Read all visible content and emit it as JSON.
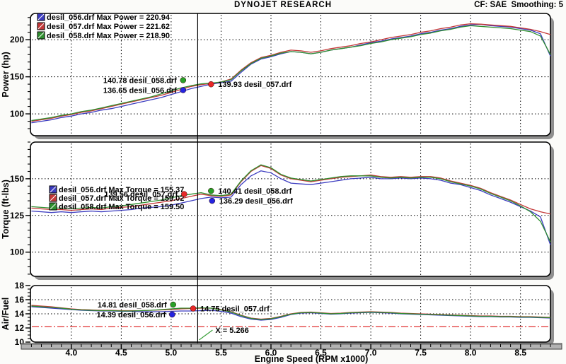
{
  "header": {
    "title": "DYNOJET RESEARCH",
    "settings": "CF: SAE  Smoothing: 5"
  },
  "colors": {
    "blue": "#3c3cc0",
    "red": "#c43838",
    "green": "#2f8f2f",
    "dot_blue": "#2424e0",
    "dot_red": "#e82828",
    "dot_green": "#28a028",
    "reference_line": "#e03030",
    "pointer_line": "#3aa03a",
    "grid": "#000000",
    "frame": "#000000",
    "axis_bar": "#b2b2b2"
  },
  "files": [
    "desil_056.drf",
    "desil_057.drf",
    "desil_058.drf"
  ],
  "cursor": {
    "x": 5.266,
    "label": "X = 5.266"
  },
  "xaxis": {
    "title": "Engine Speed (RPM x1000)",
    "min": 3.59,
    "max": 8.8,
    "major_ticks": [
      4.0,
      4.5,
      5.0,
      5.5,
      6.0,
      6.5,
      7.0,
      7.5,
      8.0,
      8.5
    ],
    "tick_labels": [
      "4.0",
      "4.5",
      "5.0",
      "5.5",
      "6.0",
      "6.5",
      "7.0",
      "7.5",
      "8.0",
      "8.5"
    ],
    "minor_step": 0.1
  },
  "chart_data": [
    {
      "type": "line",
      "panel": "power",
      "ylabel": "Power (hp)",
      "ylim": [
        70.5,
        235.5
      ],
      "yticks": [
        100,
        150,
        200
      ],
      "gridlines": [
        100,
        150,
        200
      ],
      "minor_step": 10,
      "legend_position": "top-left",
      "grid": true,
      "x": [
        3.6,
        3.7,
        3.8,
        3.9,
        4.0,
        4.1,
        4.2,
        4.3,
        4.4,
        4.5,
        4.6,
        4.7,
        4.8,
        4.9,
        5.0,
        5.1,
        5.2,
        5.3,
        5.4,
        5.5,
        5.6,
        5.7,
        5.8,
        5.9,
        6.0,
        6.1,
        6.2,
        6.3,
        6.4,
        6.5,
        6.6,
        6.7,
        6.8,
        6.9,
        7.0,
        7.1,
        7.2,
        7.3,
        7.4,
        7.5,
        7.6,
        7.7,
        7.8,
        7.9,
        8.0,
        8.1,
        8.2,
        8.3,
        8.4,
        8.5,
        8.6,
        8.7,
        8.8
      ],
      "series": [
        {
          "name": "desil_056.drf",
          "color": "blue",
          "max_value": 220.94,
          "max_label": "desil_056.drf Max Power = 220.94",
          "values": [
            88,
            90,
            92,
            95,
            97,
            100,
            102,
            105,
            107,
            110,
            113,
            116,
            119,
            122,
            126,
            130,
            134,
            137,
            140,
            142,
            144,
            156,
            167,
            174,
            177,
            181,
            184,
            183,
            181,
            183,
            186,
            188,
            190,
            193,
            196,
            198,
            201,
            203,
            205,
            208,
            210,
            213,
            215,
            218,
            220,
            220.9,
            219,
            218,
            217,
            215,
            213,
            208,
            178
          ]
        },
        {
          "name": "desil_057.drf",
          "color": "red",
          "max_value": 221.62,
          "max_label": "desil_057.drf Max Power = 221.62",
          "values": [
            90,
            92,
            94,
            97,
            99,
            102,
            104,
            107,
            110,
            113,
            116,
            119,
            122,
            125,
            129,
            133,
            137,
            139.5,
            141,
            143,
            147,
            159,
            169,
            176,
            179,
            183,
            186,
            185,
            183,
            185,
            188,
            190,
            192,
            195,
            197,
            200,
            203,
            205,
            207,
            210,
            212,
            215,
            217,
            220,
            221.6,
            221,
            220,
            219,
            218,
            216,
            214,
            211,
            207
          ]
        },
        {
          "name": "desil_058.drf",
          "color": "green",
          "max_value": 218.9,
          "max_label": "desil_058.drf Max Power = 218.90",
          "values": [
            91,
            93,
            95,
            98,
            100,
            103,
            105,
            108,
            111,
            114,
            117,
            120,
            123,
            127,
            131,
            135,
            138,
            140.5,
            141.5,
            143,
            146,
            158,
            168,
            175,
            178,
            182,
            184,
            183,
            181,
            183,
            186,
            188,
            190,
            192,
            195,
            197,
            200,
            202,
            204,
            207,
            209,
            212,
            214,
            217,
            218.9,
            218,
            217,
            216,
            215,
            213,
            211,
            205,
            180
          ]
        }
      ],
      "readouts": [
        {
          "file": "desil_058.drf",
          "color": "green",
          "value": 140.78,
          "label": "140.78 desil_058.drf",
          "dot_rpm": 5.12,
          "side": "left"
        },
        {
          "file": "desil_056.drf",
          "color": "blue",
          "value": 136.65,
          "label": "136.65 desil_056.drf",
          "dot_rpm": 5.12,
          "side": "left"
        },
        {
          "file": "desil_057.drf",
          "color": "red",
          "value": 139.93,
          "label": "139.93 desil_057.drf",
          "dot_rpm": 5.4,
          "side": "right"
        }
      ]
    },
    {
      "type": "line",
      "panel": "torque",
      "ylabel": "Torque (ft-lbs)",
      "ylim": [
        83.5,
        175
      ],
      "yticks": [
        100,
        125,
        150
      ],
      "gridlines": [
        100,
        125,
        150
      ],
      "minor_step": 5,
      "legend_position": "mid-left",
      "grid": true,
      "x": [
        3.6,
        3.7,
        3.8,
        3.9,
        4.0,
        4.1,
        4.2,
        4.3,
        4.4,
        4.5,
        4.6,
        4.7,
        4.8,
        4.9,
        5.0,
        5.1,
        5.2,
        5.3,
        5.4,
        5.5,
        5.6,
        5.7,
        5.8,
        5.9,
        6.0,
        6.1,
        6.2,
        6.3,
        6.4,
        6.5,
        6.6,
        6.7,
        6.8,
        6.9,
        7.0,
        7.1,
        7.2,
        7.3,
        7.4,
        7.5,
        7.6,
        7.7,
        7.8,
        7.9,
        8.0,
        8.1,
        8.2,
        8.3,
        8.4,
        8.5,
        8.6,
        8.7,
        8.8
      ],
      "series": [
        {
          "name": "desil_056.drf",
          "color": "blue",
          "max_value": 155.37,
          "max_label": "desil_056.drf Max Torque = 155.37",
          "values": [
            128,
            127.5,
            127,
            127.5,
            127,
            127.5,
            128,
            127.5,
            128,
            128.5,
            129,
            130,
            130.5,
            131,
            132,
            133.5,
            135,
            136.5,
            137.5,
            137,
            137.5,
            146,
            152,
            155.4,
            154,
            150,
            147,
            146.5,
            146,
            147,
            148,
            149,
            150,
            150.5,
            151,
            150,
            150,
            150.5,
            150,
            150.5,
            150,
            149,
            147,
            146,
            144,
            142,
            139,
            136.5,
            134,
            131,
            128,
            124,
            105
          ]
        },
        {
          "name": "desil_057.drf",
          "color": "red",
          "max_value": 159.02,
          "max_label": "desil_057.drf Max Torque = 159.02",
          "values": [
            130,
            129.5,
            129,
            129,
            128.5,
            129,
            129.5,
            129,
            130,
            130.5,
            131,
            132,
            133,
            134,
            135,
            136.5,
            138,
            139.5,
            138.5,
            138,
            139,
            148,
            155,
            159,
            157,
            152.5,
            150,
            149,
            148,
            149,
            150,
            151,
            151.5,
            152,
            152.5,
            151.5,
            151,
            151.5,
            151,
            151.5,
            151.5,
            150.5,
            148.5,
            147,
            145.5,
            143.5,
            140.5,
            138,
            135.5,
            132.5,
            129.5,
            127.5,
            126
          ]
        },
        {
          "name": "desil_058.drf",
          "color": "green",
          "max_value": 159.5,
          "max_label": "desil_058.drf Max Torque = 159.50",
          "values": [
            131,
            130.5,
            130,
            130,
            129.5,
            130,
            130.5,
            130,
            131,
            131.5,
            132.5,
            133.5,
            134.5,
            135.5,
            137,
            138.5,
            139.5,
            140.5,
            139,
            138.5,
            139.5,
            148.5,
            155.5,
            159.5,
            157.5,
            153,
            150.5,
            149.5,
            148.5,
            149.5,
            150.5,
            151.5,
            152,
            152,
            152,
            151,
            150.5,
            151,
            150.5,
            151,
            151,
            150,
            148,
            146.5,
            145,
            143,
            140,
            137.5,
            135,
            131.5,
            127.5,
            121,
            107
          ]
        }
      ],
      "readouts": [
        {
          "file": "desil_057.drf",
          "color": "red",
          "value": 139.56,
          "label": "139.56 desil_057.drf",
          "dot_rpm": 5.13,
          "side": "left"
        },
        {
          "file": "desil_058.drf",
          "color": "green",
          "value": 140.41,
          "label": "140.41 desil_058.drf",
          "dot_rpm": 5.4,
          "side": "right"
        },
        {
          "file": "desil_056.drf",
          "color": "blue",
          "value": 136.29,
          "label": "136.29 desil_056.drf",
          "dot_rpm": 5.41,
          "side": "right"
        }
      ]
    },
    {
      "type": "line",
      "panel": "airfuel",
      "ylabel": "Air/Fuel",
      "ylim": [
        10,
        18
      ],
      "yticks": [
        10,
        12,
        14,
        16,
        18
      ],
      "gridlines": [
        14,
        16
      ],
      "minor_step": 0.5,
      "reference_line": {
        "value": 12.2
      },
      "legend_position": "none",
      "grid": true,
      "x": [
        3.6,
        3.7,
        3.8,
        3.9,
        4.0,
        4.1,
        4.2,
        4.3,
        4.4,
        4.5,
        4.6,
        4.7,
        4.8,
        4.9,
        5.0,
        5.1,
        5.2,
        5.3,
        5.4,
        5.5,
        5.6,
        5.7,
        5.8,
        5.9,
        6.0,
        6.1,
        6.2,
        6.3,
        6.4,
        6.5,
        6.6,
        6.7,
        6.8,
        6.9,
        7.0,
        7.1,
        7.2,
        7.3,
        7.4,
        7.5,
        7.6,
        7.7,
        7.8,
        7.9,
        8.0,
        8.1,
        8.2,
        8.3,
        8.4,
        8.5,
        8.6,
        8.7,
        8.8
      ],
      "series": [
        {
          "name": "desil_056.drf",
          "color": "blue",
          "values": [
            15.0,
            14.9,
            14.8,
            14.7,
            14.6,
            14.5,
            14.45,
            14.4,
            14.4,
            14.35,
            14.35,
            14.3,
            14.3,
            14.3,
            14.35,
            14.4,
            14.4,
            14.45,
            14.5,
            14.35,
            14.1,
            13.6,
            13.25,
            13.1,
            13.2,
            13.5,
            13.9,
            14.1,
            14.15,
            14.05,
            13.95,
            14.0,
            14.1,
            14.15,
            14.2,
            14.15,
            14.1,
            14.0,
            13.95,
            13.9,
            13.85,
            13.8,
            13.75,
            13.7,
            13.65,
            13.6,
            13.6,
            13.55,
            13.55,
            13.5,
            13.5,
            13.45,
            13.4
          ]
        },
        {
          "name": "desil_057.drf",
          "color": "red",
          "values": [
            15.2,
            15.1,
            15.0,
            14.85,
            14.7,
            14.6,
            14.55,
            14.5,
            14.5,
            14.45,
            14.45,
            14.45,
            14.5,
            14.55,
            14.6,
            14.7,
            14.75,
            14.8,
            14.8,
            14.6,
            14.3,
            13.8,
            13.4,
            13.25,
            13.35,
            13.65,
            14.0,
            14.2,
            14.25,
            14.15,
            14.05,
            14.1,
            14.2,
            14.25,
            14.3,
            14.25,
            14.2,
            14.1,
            14.05,
            14.0,
            13.95,
            13.9,
            13.85,
            13.8,
            13.75,
            13.7,
            13.7,
            13.65,
            13.65,
            13.6,
            13.6,
            13.55,
            13.5
          ]
        },
        {
          "name": "desil_058.drf",
          "color": "green",
          "values": [
            15.1,
            15.0,
            14.9,
            14.8,
            14.65,
            14.55,
            14.5,
            14.45,
            14.45,
            14.4,
            14.4,
            14.45,
            14.5,
            14.6,
            14.7,
            14.8,
            14.8,
            14.85,
            14.8,
            14.55,
            14.25,
            13.75,
            13.35,
            13.2,
            13.3,
            13.6,
            13.95,
            14.15,
            14.2,
            14.1,
            14.0,
            14.05,
            14.15,
            14.2,
            14.25,
            14.2,
            14.15,
            14.05,
            14.0,
            13.95,
            13.9,
            13.85,
            13.8,
            13.75,
            13.7,
            13.65,
            13.65,
            13.6,
            13.6,
            13.55,
            13.55,
            13.5,
            13.45
          ]
        }
      ],
      "readouts": [
        {
          "file": "desil_058.drf",
          "color": "green",
          "value": 14.81,
          "label": "14.81 desil_058.drf",
          "dot_rpm": 5.02,
          "side": "left"
        },
        {
          "file": "desil_056.drf",
          "color": "blue",
          "value": 14.39,
          "label": "14.39 desil_056.drf",
          "dot_rpm": 5.01,
          "side": "left"
        },
        {
          "file": "desil_057.drf",
          "color": "red",
          "value": 14.75,
          "label": "14.75 desil_057.drf",
          "dot_rpm": 5.22,
          "side": "right"
        }
      ]
    }
  ]
}
